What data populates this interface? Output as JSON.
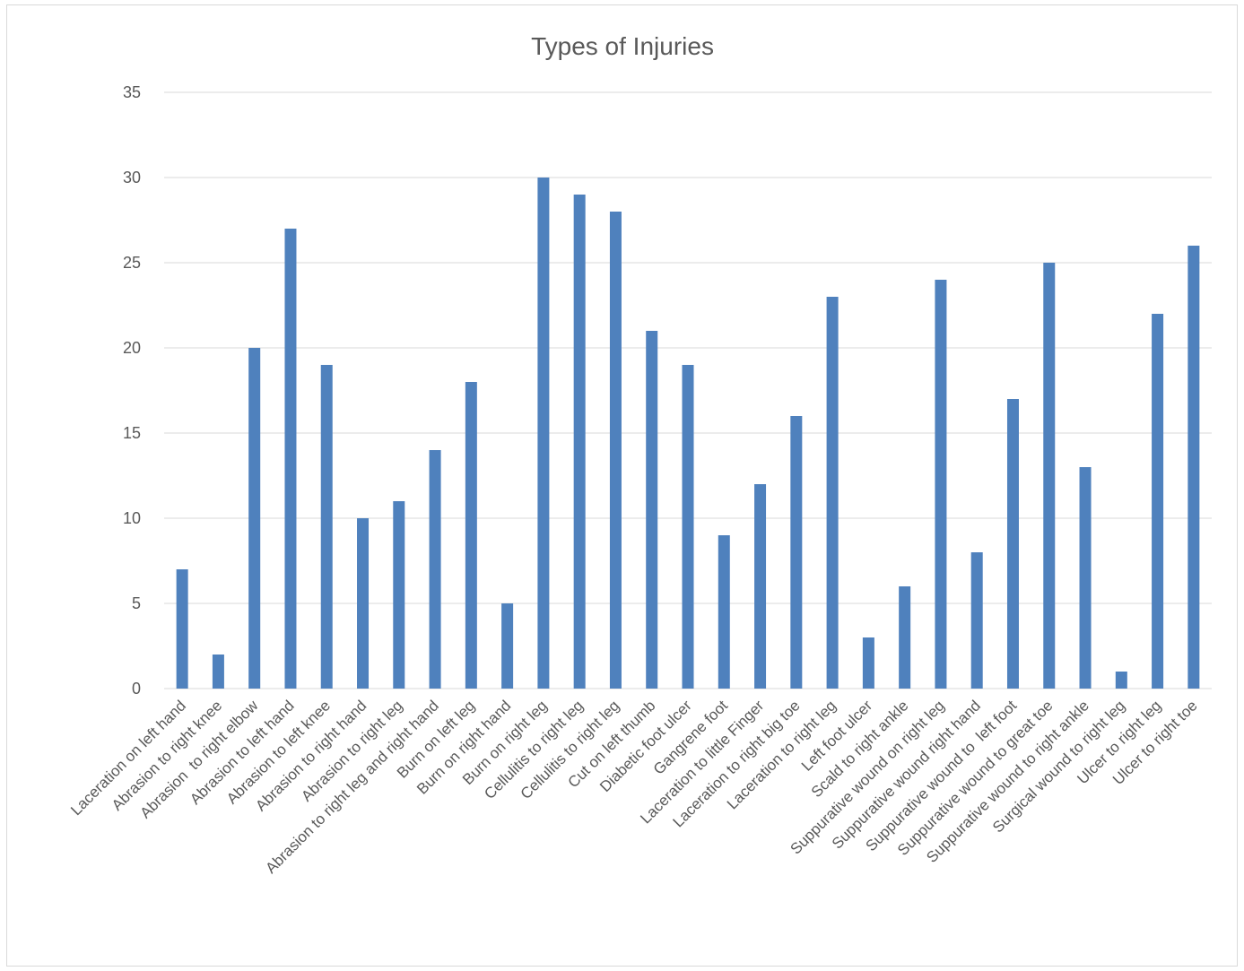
{
  "chart_data": {
    "type": "bar",
    "title": "Types of Injuries",
    "xlabel": "",
    "ylabel": "",
    "ylim": [
      0,
      35
    ],
    "yticks": [
      "0",
      "5",
      "10",
      "15",
      "20",
      "25",
      "30",
      "35"
    ],
    "grid": true,
    "legend": "none",
    "bar_color": "#4f81bd",
    "grid_color": "#d9d9d9",
    "text_color": "#595959",
    "categories": [
      "Laceration on left hand",
      "Abrasion to right knee",
      "Abrasion  to right elbow",
      "Abrasion to left hand",
      "Abrasion to left knee",
      "Abrasion to right hand",
      "Abrasion to right leg",
      "Abrasion to right leg and right hand",
      "Burn on left leg",
      "Burn on right hand",
      "Burn on right leg",
      "Cellulitis to right leg",
      "Cellulitis to right leg",
      "Cut on left thumb",
      "Diabetic foot ulcer",
      "Gangrene foot",
      "Laceration to little Finger",
      "Laceration to right big toe",
      "Laceration to right leg",
      "Left foot ulcer",
      "Scald to right ankle",
      "Suppurative wound on right leg",
      "Suppurative wound right hand",
      "Suppurative wound to  left foot",
      "Suppurative wound to great toe",
      "Suppurative wound to right ankle",
      "Surgical wound to right leg",
      "Ulcer to right leg",
      "Ulcer to right toe"
    ],
    "values": [
      7,
      2,
      20,
      27,
      19,
      10,
      11,
      14,
      18,
      5,
      30,
      29,
      28,
      21,
      19,
      9,
      12,
      16,
      23,
      3,
      6,
      24,
      8,
      17,
      25,
      13,
      1,
      22,
      26
    ]
  }
}
